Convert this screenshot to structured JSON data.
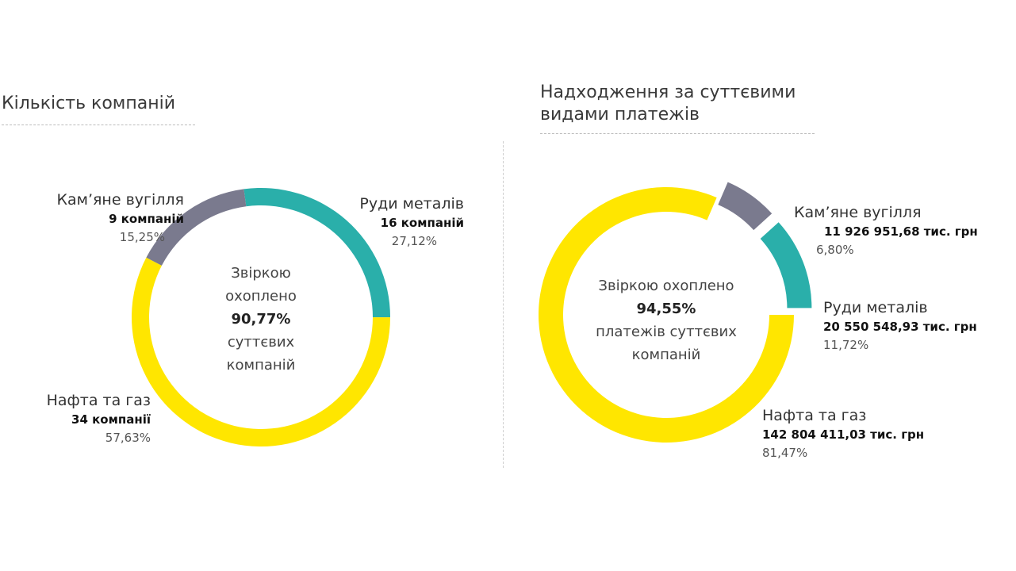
{
  "colors": {
    "oil_gas": "#FFE600",
    "metals": "#2AAFAA",
    "coal": "#7A7A8E"
  },
  "left": {
    "title": "Кількість компаній",
    "center": {
      "line1": "Звіркою",
      "line2": "охоплено",
      "value": "90,77%",
      "line3": "суттєвих",
      "line4": "компаній"
    }
  },
  "right": {
    "title_line1": "Надходження за суттєвими",
    "title_line2": "видами платежів",
    "center": {
      "line1": "Звіркою охоплено",
      "value": "94,55%",
      "line2": "платежів суттєвих",
      "line3": "компаній"
    }
  },
  "chart_data": [
    {
      "type": "pie",
      "title": "Кількість компаній",
      "categories": [
        "Руди металів",
        "Нафта та газ",
        "Кам’яне вугілля"
      ],
      "values": [
        16,
        34,
        9
      ],
      "value_labels": [
        "16 компаній",
        "34 компанії",
        "9 компаній"
      ],
      "percent_labels": [
        "27,12%",
        "57,63%",
        "15,25%"
      ],
      "colors": [
        "#2AAFAA",
        "#FFE600",
        "#7A7A8E"
      ],
      "donut": true
    },
    {
      "type": "pie",
      "title": "Надходження за суттєвими видами платежів",
      "categories": [
        "Нафта та газ",
        "Кам’яне вугілля",
        "Руди металів"
      ],
      "values": [
        142804411.03,
        11926951.68,
        20550548.93
      ],
      "value_labels": [
        "142 804 411,03 тис. грн",
        "11 926 951,68 тис. грн",
        "20 550 548,93 тис. грн"
      ],
      "percent_labels": [
        "81,47%",
        "6,80%",
        "11,72%"
      ],
      "colors": [
        "#FFE600",
        "#7A7A8E",
        "#2AAFAA"
      ],
      "donut": true,
      "exploded": true
    }
  ]
}
